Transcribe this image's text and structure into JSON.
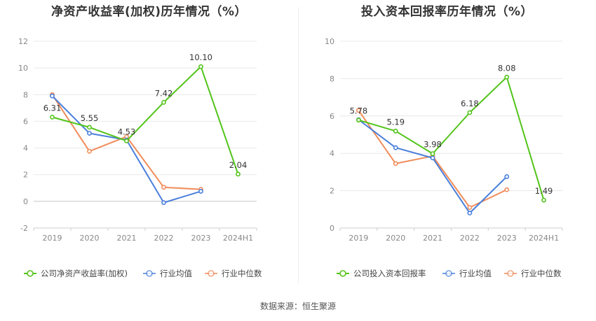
{
  "source": "数据来源：恒生聚源",
  "chart_data": [
    {
      "type": "line",
      "title": "净资产收益率(加权)历年情况（%）",
      "categories": [
        "2019",
        "2020",
        "2021",
        "2022",
        "2023",
        "2024H1"
      ],
      "ylim": [
        -2,
        12
      ],
      "yticks": [
        -2,
        0,
        2,
        4,
        6,
        8,
        10,
        12
      ],
      "grid": true,
      "legend_position": "bottom",
      "series": [
        {
          "name": "公司净资产收益率(加权)",
          "color": "#52c41a",
          "labels": true,
          "values": [
            6.31,
            5.55,
            4.53,
            7.42,
            10.1,
            2.04
          ],
          "value_labels": [
            "6.31",
            "5.55",
            "4.53",
            "7.42",
            "10.10",
            "2.04"
          ]
        },
        {
          "name": "行业均值",
          "color": "#4a7fdb",
          "labels": false,
          "values": [
            7.9,
            5.1,
            4.6,
            -0.1,
            0.75,
            null
          ]
        },
        {
          "name": "行业中位数",
          "color": "#f08c5a",
          "labels": false,
          "values": [
            8.0,
            3.75,
            4.85,
            1.05,
            0.9,
            null
          ]
        }
      ]
    },
    {
      "type": "line",
      "title": "投入资本回报率历年情况（%）",
      "categories": [
        "2019",
        "2020",
        "2021",
        "2022",
        "2023",
        "2024H1"
      ],
      "ylim": [
        0,
        10
      ],
      "yticks": [
        0,
        2,
        4,
        6,
        8,
        10
      ],
      "grid": true,
      "legend_position": "bottom",
      "series": [
        {
          "name": "公司投入资本回报率",
          "color": "#52c41a",
          "labels": true,
          "values": [
            5.78,
            5.19,
            3.98,
            6.18,
            8.08,
            1.49
          ],
          "value_labels": [
            "5.78",
            "5.19",
            "3.98",
            "6.18",
            "8.08",
            "1.49"
          ]
        },
        {
          "name": "行业均值",
          "color": "#4a7fdb",
          "labels": false,
          "values": [
            5.8,
            4.3,
            3.75,
            0.8,
            2.75,
            null
          ]
        },
        {
          "name": "行业中位数",
          "color": "#f08c5a",
          "labels": false,
          "values": [
            6.3,
            3.45,
            3.85,
            1.1,
            2.05,
            null
          ]
        }
      ]
    }
  ]
}
